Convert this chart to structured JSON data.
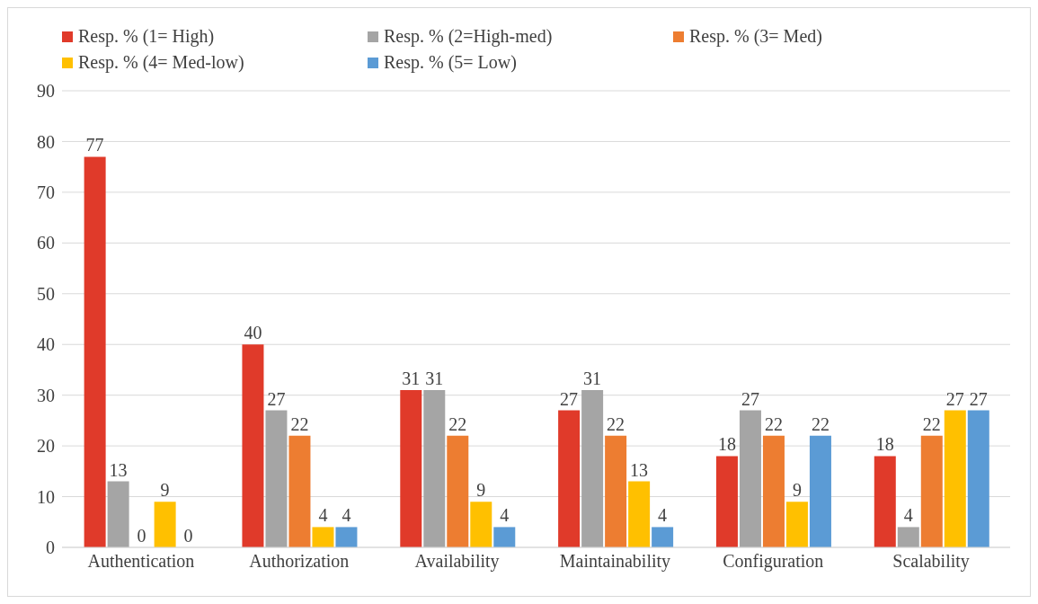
{
  "chart_data": {
    "type": "bar",
    "categories": [
      "Authentication",
      "Authorization",
      "Availability",
      "Maintainability",
      "Configuration",
      "Scalability"
    ],
    "series": [
      {
        "name": "Resp. % (1= High)",
        "color": "#e03a2a",
        "values": [
          77,
          40,
          31,
          27,
          18,
          18
        ]
      },
      {
        "name": "Resp. % (2=High-med)",
        "color": "#a5a5a5",
        "values": [
          13,
          27,
          31,
          31,
          27,
          4
        ]
      },
      {
        "name": "Resp. % (3= Med)",
        "color": "#ed7d31",
        "values": [
          0,
          22,
          22,
          22,
          22,
          22
        ]
      },
      {
        "name": "Resp. % (4= Med-low)",
        "color": "#ffc000",
        "values": [
          9,
          4,
          9,
          13,
          9,
          27
        ]
      },
      {
        "name": "Resp. % (5= Low)",
        "color": "#5b9bd5",
        "values": [
          0,
          4,
          4,
          4,
          22,
          27
        ]
      }
    ],
    "ylim": [
      0,
      90
    ],
    "yticks": [
      0,
      10,
      20,
      30,
      40,
      50,
      60,
      70,
      80,
      90
    ],
    "grid": "y",
    "legend": "top",
    "data_labels": true
  }
}
